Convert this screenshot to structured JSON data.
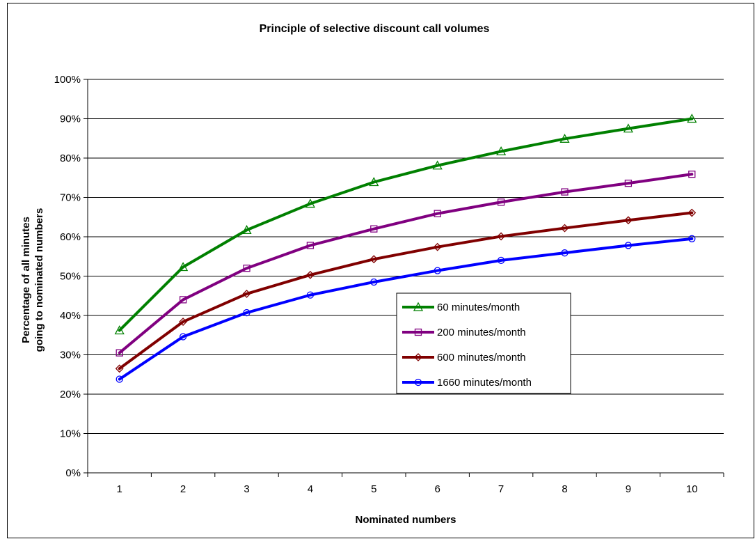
{
  "chart_data": {
    "type": "line",
    "title": "Principle of selective discount call volumes",
    "xlabel": "Nominated numbers",
    "ylabel_lines": [
      "Percentage of all minutes",
      "going to nominated numbers"
    ],
    "x": [
      1,
      2,
      3,
      4,
      5,
      6,
      7,
      8,
      9,
      10
    ],
    "x_tick_labels": [
      "1",
      "2",
      "3",
      "4",
      "5",
      "6",
      "7",
      "8",
      "9",
      "10"
    ],
    "ylim": [
      0,
      100
    ],
    "y_tick_labels": [
      "0%",
      "10%",
      "20%",
      "30%",
      "40%",
      "50%",
      "60%",
      "70%",
      "80%",
      "90%",
      "100%"
    ],
    "grid": "horizontal",
    "legend_position": "center-right",
    "series": [
      {
        "name": "60 minutes/month",
        "color": "#008000",
        "marker": "triangle",
        "values": [
          36.2,
          52.3,
          61.7,
          68.4,
          73.9,
          78.1,
          81.7,
          84.9,
          87.5,
          90.0
        ]
      },
      {
        "name": "200 minutes/month",
        "color": "#800080",
        "marker": "square",
        "values": [
          30.5,
          44.0,
          52.0,
          57.8,
          62.0,
          65.9,
          68.8,
          71.4,
          73.6,
          75.9
        ]
      },
      {
        "name": "600 minutes/month",
        "color": "#800000",
        "marker": "diamond",
        "values": [
          26.5,
          38.4,
          45.5,
          50.3,
          54.3,
          57.4,
          60.1,
          62.2,
          64.2,
          66.1
        ]
      },
      {
        "name": "1660 minutes/month",
        "color": "#0000ff",
        "marker": "circle",
        "values": [
          23.8,
          34.6,
          40.7,
          45.2,
          48.5,
          51.4,
          54.0,
          55.9,
          57.8,
          59.5
        ]
      }
    ]
  }
}
